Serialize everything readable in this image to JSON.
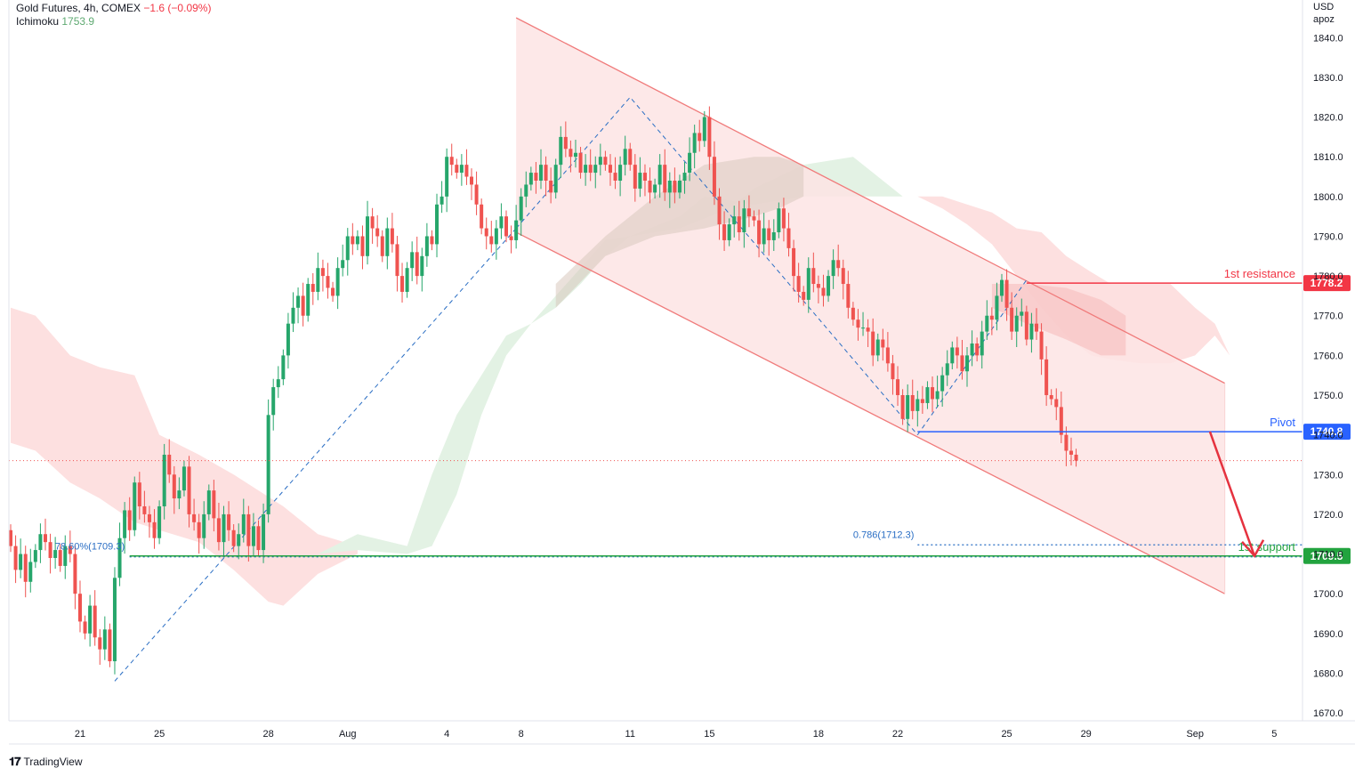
{
  "header": {
    "title": "Gold Futures, 4h, COMEX",
    "change": "−1.6 (−0.09%)",
    "indicator": "Ichimoku",
    "indicator_value": "1753.9"
  },
  "axis_unit": {
    "currency": "USD",
    "adjustment": "apoz"
  },
  "branding": {
    "logo_text": "TradingView"
  },
  "colors": {
    "up": "#26a66b",
    "down": "#ef5350",
    "channel": "#f07b7b",
    "channel_fill": "#fde4e4",
    "cloud_green": "#e3f2e4",
    "cloud_red": "#fde0e0",
    "resistance": "#f23645",
    "pivot": "#2962ff",
    "support": "#22a33f",
    "fib": "#2a6ec4",
    "arrow": "#e5323f"
  },
  "chart_data": {
    "type": "candlestick",
    "timeframe": "4h",
    "ylim": [
      1668,
      1845
    ],
    "y_ticks": [
      1670,
      1680,
      1690,
      1700,
      1710,
      1720,
      1730,
      1740,
      1750,
      1760,
      1770,
      1780,
      1790,
      1800,
      1810,
      1820,
      1830,
      1840
    ],
    "x_ticks": [
      {
        "label": "21",
        "bar": 14
      },
      {
        "label": "25",
        "bar": 30
      },
      {
        "label": "28",
        "bar": 52
      },
      {
        "label": "Aug",
        "bar": 68
      },
      {
        "label": "4",
        "bar": 88
      },
      {
        "label": "8",
        "bar": 103
      },
      {
        "label": "11",
        "bar": 125
      },
      {
        "label": "15",
        "bar": 141
      },
      {
        "label": "18",
        "bar": 163
      },
      {
        "label": "22",
        "bar": 179
      },
      {
        "label": "25",
        "bar": 201
      },
      {
        "label": "29",
        "bar": 217
      },
      {
        "label": "Sep",
        "bar": 239
      },
      {
        "label": "5",
        "bar": 255
      }
    ],
    "current_price": 1733.5,
    "levels": [
      {
        "name": "1st resistance",
        "value": 1778.2,
        "label": "1778.2",
        "from_bar": 205
      },
      {
        "name": "Pivot",
        "value": 1740.8,
        "label": "1740.8",
        "from_bar": 183
      },
      {
        "name": "1st support",
        "value": 1709.5,
        "label": "1709.5",
        "from_bar": 24
      }
    ],
    "fib_labels": [
      {
        "text": "78.60%(1709.3)",
        "value": 1709.3,
        "bar": 5
      },
      {
        "text": "0.786(1712.3)",
        "value": 1712.3,
        "bar": 170
      }
    ],
    "fib_dotted_lines": [
      {
        "value": 1709.3,
        "from_bar": 24,
        "to_bar": 270
      },
      {
        "value": 1712.3,
        "from_bar": 183,
        "to_bar": 270
      }
    ],
    "zigzag_lines": [
      [
        [
          21,
          1678
        ],
        [
          102,
          1792
        ]
      ],
      [
        [
          102,
          1792
        ],
        [
          125,
          1825
        ],
        [
          183,
          1740
        ]
      ],
      [
        [
          183,
          1740
        ],
        [
          205,
          1779
        ]
      ]
    ],
    "channel": {
      "upper": [
        [
          102,
          1845
        ],
        [
          245,
          1753
        ]
      ],
      "lower": [
        [
          102,
          1791
        ],
        [
          245,
          1700
        ]
      ]
    },
    "projection_arrow": [
      [
        242,
        1740.8
      ],
      [
        251,
        1709.5
      ]
    ],
    "cloud_red_upper": [
      [
        0,
        1772
      ],
      [
        5,
        1770
      ],
      [
        12,
        1760
      ],
      [
        18,
        1757
      ],
      [
        25,
        1755
      ],
      [
        30,
        1740
      ],
      [
        38,
        1735
      ],
      [
        45,
        1730
      ],
      [
        55,
        1722
      ],
      [
        62,
        1715
      ],
      [
        70,
        1712
      ]
    ],
    "cloud_red_lower": [
      [
        0,
        1738
      ],
      [
        5,
        1736
      ],
      [
        12,
        1728
      ],
      [
        18,
        1724
      ],
      [
        25,
        1718
      ],
      [
        30,
        1716
      ],
      [
        38,
        1713
      ],
      [
        45,
        1706
      ],
      [
        52,
        1698
      ],
      [
        55,
        1697
      ],
      [
        62,
        1705
      ],
      [
        70,
        1710
      ]
    ],
    "cloud_green_upper": [
      [
        62,
        1710
      ],
      [
        70,
        1715
      ],
      [
        80,
        1712
      ],
      [
        85,
        1730
      ],
      [
        90,
        1745
      ],
      [
        95,
        1755
      ],
      [
        100,
        1765
      ],
      [
        105,
        1768
      ],
      [
        110,
        1775
      ],
      [
        115,
        1782
      ],
      [
        120,
        1789
      ],
      [
        125,
        1790
      ],
      [
        135,
        1792
      ],
      [
        145,
        1797
      ],
      [
        150,
        1802
      ],
      [
        160,
        1808
      ],
      [
        170,
        1810
      ],
      [
        175,
        1805
      ],
      [
        180,
        1800
      ],
      [
        185,
        1800
      ]
    ],
    "cloud_green_lower": [
      [
        62,
        1710
      ],
      [
        70,
        1711
      ],
      [
        80,
        1710
      ],
      [
        85,
        1712
      ],
      [
        90,
        1725
      ],
      [
        95,
        1745
      ],
      [
        100,
        1760
      ],
      [
        105,
        1768
      ],
      [
        110,
        1772
      ],
      [
        115,
        1778
      ],
      [
        120,
        1785
      ],
      [
        125,
        1790
      ],
      [
        135,
        1795
      ],
      [
        140,
        1800
      ],
      [
        150,
        1798
      ],
      [
        160,
        1800
      ],
      [
        170,
        1800
      ],
      [
        175,
        1800
      ],
      [
        180,
        1800
      ],
      [
        185,
        1800
      ]
    ],
    "cloud_red2_upper": [
      [
        183,
        1800
      ],
      [
        188,
        1800
      ],
      [
        193,
        1798
      ],
      [
        198,
        1796
      ],
      [
        203,
        1792
      ],
      [
        208,
        1791
      ],
      [
        213,
        1785
      ],
      [
        218,
        1781
      ],
      [
        222,
        1778
      ],
      [
        228,
        1778
      ],
      [
        234,
        1778
      ],
      [
        239,
        1772
      ],
      [
        243,
        1768
      ],
      [
        246,
        1760
      ]
    ],
    "cloud_red2_lower": [
      [
        183,
        1800
      ],
      [
        188,
        1797
      ],
      [
        193,
        1793
      ],
      [
        198,
        1788
      ],
      [
        203,
        1780
      ],
      [
        208,
        1772
      ],
      [
        213,
        1765
      ],
      [
        218,
        1760
      ],
      [
        222,
        1759
      ],
      [
        228,
        1758
      ],
      [
        234,
        1758
      ],
      [
        239,
        1760
      ],
      [
        243,
        1765
      ],
      [
        246,
        1760
      ]
    ],
    "cloud_overlap_upper": [
      [
        110,
        1778
      ],
      [
        120,
        1790
      ],
      [
        130,
        1800
      ],
      [
        140,
        1808
      ],
      [
        150,
        1810
      ],
      [
        155,
        1810
      ],
      [
        160,
        1808
      ]
    ],
    "cloud_overlap_lower": [
      [
        110,
        1772
      ],
      [
        120,
        1785
      ],
      [
        130,
        1790
      ],
      [
        140,
        1792
      ],
      [
        150,
        1795
      ],
      [
        155,
        1797
      ],
      [
        160,
        1800
      ]
    ],
    "cloud_overlap2_upper": [
      [
        198,
        1778
      ],
      [
        205,
        1778
      ],
      [
        213,
        1777
      ],
      [
        220,
        1774
      ],
      [
        225,
        1770
      ]
    ],
    "cloud_overlap2_lower": [
      [
        198,
        1772
      ],
      [
        205,
        1768
      ],
      [
        213,
        1764
      ],
      [
        220,
        1760
      ],
      [
        225,
        1760
      ]
    ],
    "closes": [
      1712,
      1706,
      1710,
      1703,
      1708,
      1711,
      1715,
      1713,
      1709,
      1711,
      1707,
      1712,
      1710,
      1700,
      1693,
      1690,
      1697,
      1689,
      1686,
      1691,
      1683,
      1704,
      1714,
      1721,
      1716,
      1728,
      1722,
      1720,
      1718,
      1714,
      1722,
      1735,
      1730,
      1724,
      1726,
      1732,
      1720,
      1718,
      1714,
      1720,
      1726,
      1719,
      1713,
      1720,
      1716,
      1712,
      1715,
      1720,
      1712,
      1717,
      1711,
      1720,
      1745,
      1752,
      1754,
      1760,
      1768,
      1772,
      1775,
      1770,
      1778,
      1776,
      1782,
      1780,
      1777,
      1775,
      1782,
      1784,
      1790,
      1788,
      1790,
      1785,
      1795,
      1792,
      1790,
      1785,
      1792,
      1788,
      1780,
      1776,
      1782,
      1786,
      1780,
      1785,
      1790,
      1788,
      1798,
      1800,
      1810,
      1808,
      1806,
      1808,
      1805,
      1803,
      1798,
      1792,
      1790,
      1788,
      1792,
      1795,
      1790,
      1789,
      1794,
      1800,
      1803,
      1806,
      1804,
      1808,
      1804,
      1801,
      1808,
      1815,
      1812,
      1810,
      1811,
      1806,
      1808,
      1806,
      1808,
      1810,
      1808,
      1806,
      1804,
      1808,
      1812,
      1808,
      1802,
      1806,
      1804,
      1801,
      1803,
      1808,
      1801,
      1804,
      1801,
      1804,
      1806,
      1811,
      1816,
      1814,
      1820,
      1810,
      1800,
      1793,
      1789,
      1793,
      1795,
      1791,
      1797,
      1795,
      1794,
      1788,
      1792,
      1789,
      1791,
      1797,
      1792,
      1787,
      1780,
      1776,
      1774,
      1782,
      1778,
      1777,
      1775,
      1780,
      1784,
      1782,
      1778,
      1772,
      1769,
      1767,
      1767,
      1766,
      1760,
      1764,
      1762,
      1758,
      1754,
      1750,
      1744,
      1750,
      1746,
      1749,
      1748,
      1752,
      1749,
      1751,
      1755,
      1758,
      1762,
      1760,
      1756,
      1760,
      1763,
      1760,
      1766,
      1770,
      1769,
      1775,
      1779,
      1772,
      1766,
      1770,
      1771,
      1764,
      1768,
      1766,
      1759,
      1750,
      1749,
      1747,
      1740,
      1736,
      1735,
      1733.5
    ]
  }
}
